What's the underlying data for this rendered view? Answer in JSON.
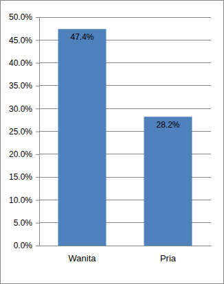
{
  "chart_data": {
    "type": "bar",
    "categories": [
      "Wanita",
      "Pria"
    ],
    "values": [
      47.4,
      28.2
    ],
    "value_labels": [
      "47.4%",
      "28.2%"
    ],
    "data_labels": true,
    "color": "#4f81bd",
    "ylim": [
      0,
      50
    ],
    "yticks": [
      {
        "value": 0,
        "label": "0.0%"
      },
      {
        "value": 5,
        "label": "5.0%"
      },
      {
        "value": 10,
        "label": "10.0%"
      },
      {
        "value": 15,
        "label": "15.0%"
      },
      {
        "value": 20,
        "label": "20.0%"
      },
      {
        "value": 25,
        "label": "25.0%"
      },
      {
        "value": 30,
        "label": "30.0%"
      },
      {
        "value": 35,
        "label": "35.0%"
      },
      {
        "value": 40,
        "label": "40.0%"
      },
      {
        "value": 45,
        "label": "45.0%"
      },
      {
        "value": 50,
        "label": "50.0%"
      }
    ],
    "grid": true
  }
}
